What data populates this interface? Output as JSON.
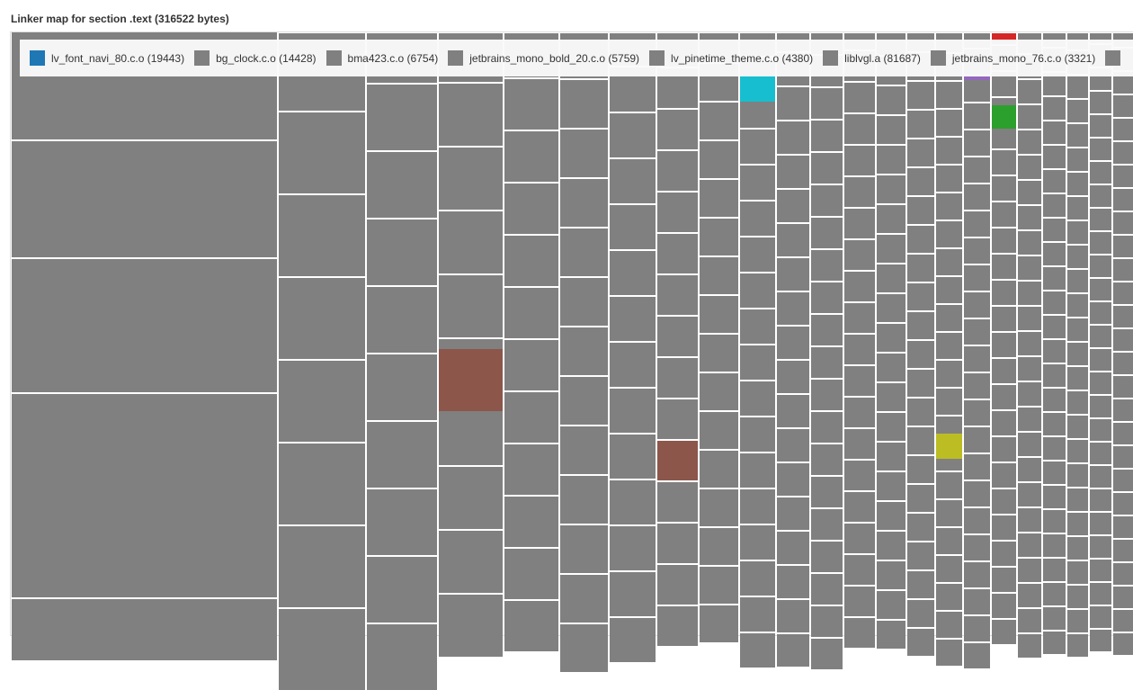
{
  "title": "Linker map for section .text (316522 bytes)",
  "colors": {
    "default_tile": "#808080",
    "blue": "#1f77b4",
    "brown": "#8c564b",
    "cyan": "#17becf",
    "olive": "#bcbd22",
    "purple": "#9467bd",
    "green": "#2ca02c",
    "red": "#d62728"
  },
  "legend": [
    {
      "label": "lv_font_navi_80.c.o (19443)",
      "color": "#1f77b4"
    },
    {
      "label": "bg_clock.c.o (14428)",
      "color": "#808080"
    },
    {
      "label": "bma423.c.o (6754)",
      "color": "#808080"
    },
    {
      "label": "jetbrains_mono_bold_20.c.o (5759)",
      "color": "#808080"
    },
    {
      "label": "lv_pinetime_theme.c.o (4380)",
      "color": "#808080"
    },
    {
      "label": "liblvgl.a (81687)",
      "color": "#808080"
    },
    {
      "label": "jetbrains_mono_76.c.o (3321)",
      "color": "#808080"
    },
    {
      "label": "",
      "color": "#808080"
    }
  ]
}
